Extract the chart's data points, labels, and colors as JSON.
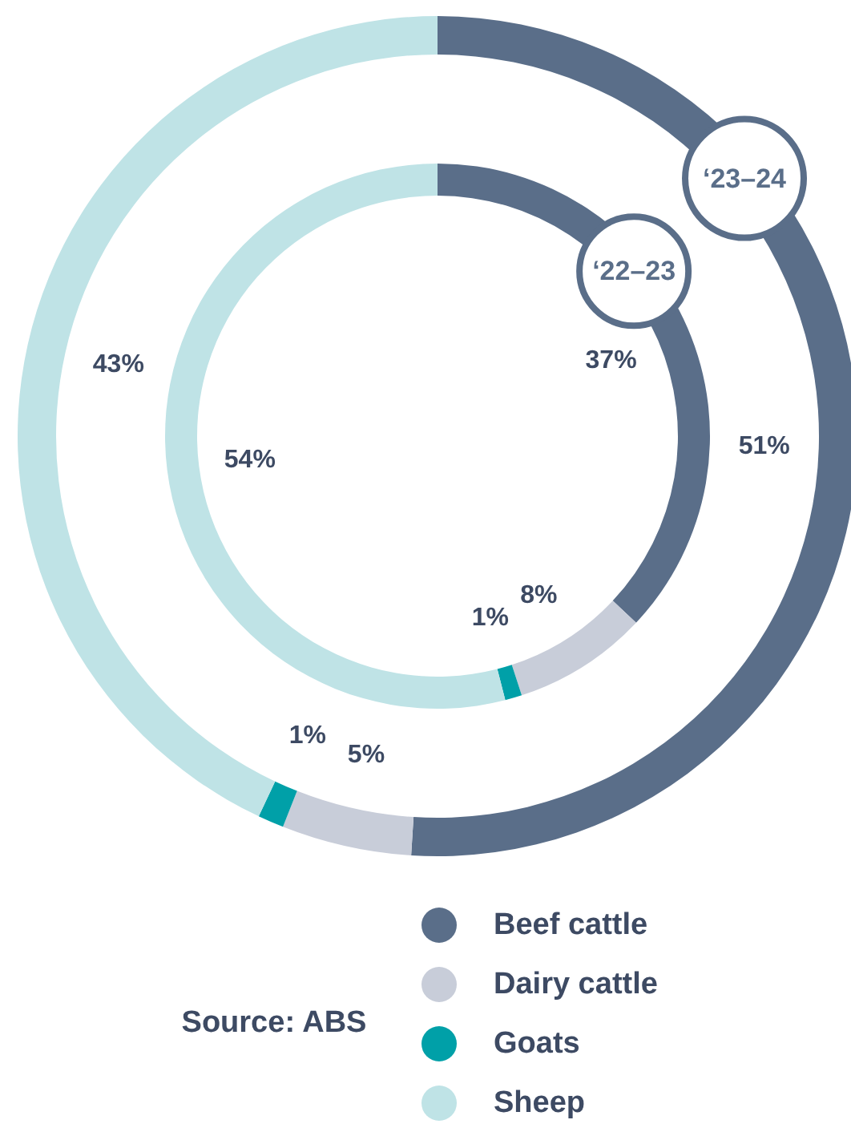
{
  "chart_data": {
    "type": "donut",
    "categories": [
      "Beef cattle",
      "Dairy cattle",
      "Goats",
      "Sheep"
    ],
    "colors": [
      "#5a6e89",
      "#c8cdd9",
      "#00a0a8",
      "#bfe3e6"
    ],
    "series": [
      {
        "name": "‘23–24",
        "values": [
          51,
          5,
          1,
          43
        ],
        "value_labels": [
          "51%",
          "5%",
          "1%",
          "43%"
        ]
      },
      {
        "name": "‘22–23",
        "values": [
          37,
          8,
          1,
          54
        ],
        "value_labels": [
          "37%",
          "8%",
          "1%",
          "54%"
        ]
      }
    ],
    "legend": "bottom",
    "annotations": [
      "Source: ABS"
    ]
  }
}
